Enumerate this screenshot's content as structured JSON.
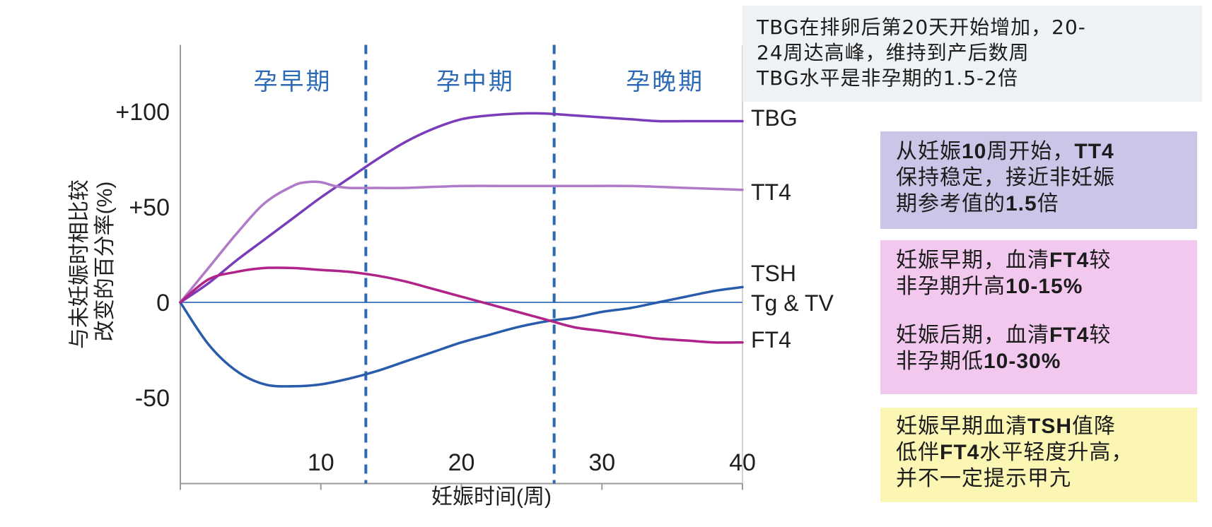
{
  "colors": {
    "tbg": "#7a3cb8",
    "tt4": "#b07ac8",
    "tsh": "#2a5cac",
    "ft4": "#b0248a",
    "phase": "#2c6ab6",
    "note_tbg_bg": "#eef2f4",
    "note_tt4_bg": "#c9c6e8",
    "note_ft4_bg": "#f2c8ef",
    "note_tsh_bg": "#fbf6b4"
  },
  "chart_data": {
    "type": "line",
    "title": "",
    "xlabel": "妊娠时间(周)",
    "ylabel": "与未妊娠时相比较改变的百分率(%)",
    "ylabel_lines": [
      "与未妊娠时相比较",
      "改变的百分率(%)"
    ],
    "xlim": [
      0,
      40
    ],
    "ylim": [
      -95,
      135
    ],
    "x_ticks": [
      10,
      20,
      30,
      40
    ],
    "x_tick_labels": [
      "10",
      "20",
      "30",
      "40"
    ],
    "y_ticks": [
      100,
      50,
      0,
      -50
    ],
    "y_tick_labels": [
      "+100",
      "+50",
      "0",
      "-50"
    ],
    "grid": false,
    "zero_line": true,
    "phase_dividers": [
      13.2,
      26.6
    ],
    "phases": [
      {
        "label": "孕早期",
        "x": 8
      },
      {
        "label": "孕中期",
        "x": 21
      },
      {
        "label": "孕晚期",
        "x": 34.5
      }
    ],
    "series": [
      {
        "name": "TBG",
        "x": [
          0,
          2,
          4,
          6,
          8,
          10,
          12,
          14,
          16,
          18,
          20,
          22,
          24,
          26,
          28,
          30,
          32,
          34,
          36,
          38,
          40
        ],
        "y": [
          0,
          10,
          22,
          33,
          44,
          55,
          65,
          75,
          84,
          91,
          96,
          98,
          99,
          99,
          98,
          97,
          96,
          95,
          95,
          95,
          95
        ]
      },
      {
        "name": "TT4",
        "x": [
          0,
          2,
          4,
          6,
          8,
          9,
          10,
          11,
          12,
          14,
          16,
          20,
          24,
          28,
          32,
          36,
          40
        ],
        "y": [
          0,
          18,
          36,
          52,
          61,
          63,
          63,
          61,
          60,
          60,
          60,
          61,
          61,
          61,
          61,
          60,
          59
        ]
      },
      {
        "name": "TSH",
        "x": [
          0,
          2,
          4,
          6,
          8,
          10,
          12,
          14,
          16,
          18,
          20,
          22,
          24,
          26,
          28,
          30,
          32,
          34,
          36,
          38,
          40
        ],
        "y": [
          0,
          -22,
          -36,
          -43,
          -44,
          -43,
          -40,
          -36,
          -31,
          -26,
          -21,
          -17,
          -13,
          -10,
          -8,
          -5,
          -3,
          0,
          3,
          6,
          8
        ]
      },
      {
        "name": "FT4",
        "x": [
          0,
          2,
          4,
          6,
          8,
          10,
          12,
          14,
          16,
          18,
          20,
          22,
          24,
          26,
          28,
          30,
          32,
          34,
          36,
          38,
          40
        ],
        "y": [
          0,
          12,
          16,
          18,
          18,
          17,
          16,
          14,
          11,
          7,
          3,
          -1,
          -5,
          -9,
          -13,
          -15,
          -17,
          -19,
          -20,
          -21,
          -21
        ]
      }
    ],
    "line_labels": [
      {
        "text": "TBG",
        "series": "TBG"
      },
      {
        "text": "TT4",
        "series": "TT4"
      },
      {
        "text": "TSH",
        "series": "TSH"
      },
      {
        "text": "Tg & TV",
        "series": "TSH"
      },
      {
        "text": "FT4",
        "series": "FT4"
      }
    ]
  },
  "notes": {
    "tbg": {
      "lines": [
        "TBG在排卵后第20天开始增加，20-",
        "24周达高峰，维持到产后数周",
        "TBG水平是非孕期的1.5-2倍"
      ]
    },
    "tt4": {
      "l1a": "从妊娠",
      "l1b": "10",
      "l1c": "周开始，",
      "l1d": "TT4",
      "l2": "保持稳定，接近非妊娠",
      "l3a": "期参考值的",
      "l3b": "1.5",
      "l3c": "倍"
    },
    "ft4": {
      "p1l1a": "妊娠早期，血清",
      "p1l1b": "FT4",
      "p1l1c": "较",
      "p1l2a": "非孕期升高",
      "p1l2b": "10-15%",
      "p2l1a": "妊娠后期，血清",
      "p2l1b": "FT4",
      "p2l1c": "较",
      "p2l2a": "非孕期低",
      "p2l2b": "10-30%"
    },
    "tsh": {
      "l1a": "妊娠早期血清",
      "l1b": "TSH",
      "l1c": "值降",
      "l2a": "低伴",
      "l2b": "FT4",
      "l2c": "水平轻度升高，",
      "l3": "并不一定提示甲亢"
    }
  }
}
